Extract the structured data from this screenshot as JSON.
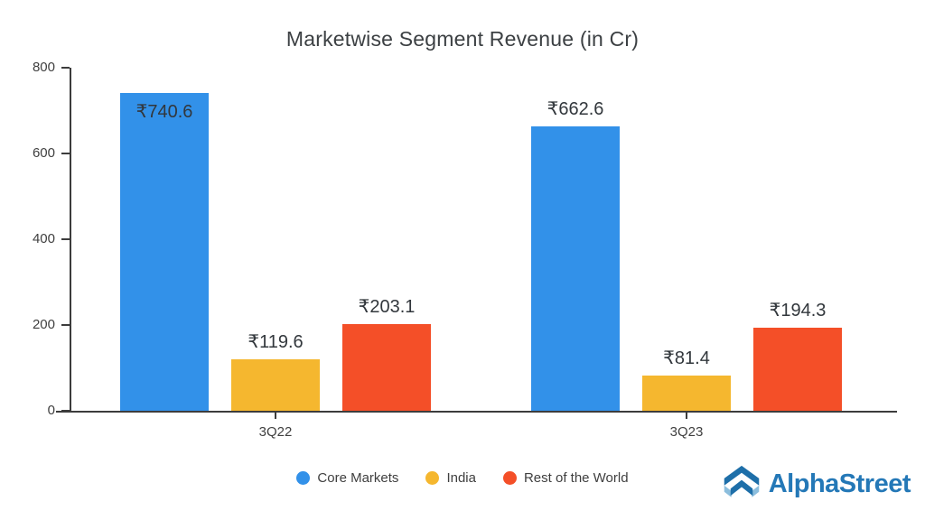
{
  "title": "Marketwise Segment Revenue (in Cr)",
  "chart_data": {
    "type": "bar",
    "title": "Marketwise Segment Revenue (in Cr)",
    "categories": [
      "3Q22",
      "3Q23"
    ],
    "series": [
      {
        "name": "Core Markets",
        "color": "#3291E9",
        "values": [
          740.6,
          662.6
        ],
        "labels": [
          "₹740.6",
          "₹662.6"
        ]
      },
      {
        "name": "India",
        "color": "#F5B72F",
        "values": [
          119.6,
          81.4
        ],
        "labels": [
          "₹119.6",
          "₹81.4"
        ]
      },
      {
        "name": "Rest of the World",
        "color": "#F44F28",
        "values": [
          203.1,
          194.3
        ],
        "labels": [
          "₹203.1",
          "₹194.3"
        ]
      }
    ],
    "ylim": [
      0,
      800
    ],
    "yticks": [
      0,
      200,
      400,
      600,
      800
    ],
    "grid": false,
    "legend_position": "bottom",
    "currency_symbol": "₹"
  },
  "branding": {
    "logo_text": "AlphaStreet",
    "logo_text_color": "#2478B7",
    "logo_mark_dark": "#1E6FA9",
    "logo_mark_light": "#8CBEDD"
  }
}
